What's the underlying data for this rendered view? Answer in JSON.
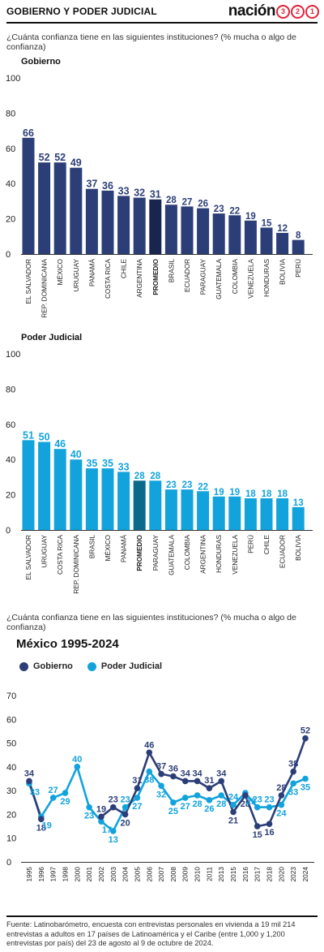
{
  "header": {
    "title": "GOBIERNO Y PODER JUDICIAL",
    "brand_word": "nación",
    "brand_digits": [
      "3",
      "2",
      "1"
    ]
  },
  "colors": {
    "navy": "#2c3e77",
    "navy_highlight": "#17254f",
    "cyan": "#13a3dc",
    "cyan_highlight": "#0b6a8c",
    "brand_red": "#e0243a"
  },
  "question1": "¿Cuánta confianza tiene en las siguientes instituciones? (% mucha o algo de confianza)",
  "question2": "¿Cuánta confianza tiene en las siguientes instituciones? (% mucha o algo de confianza)",
  "timeline_title": "México 1995-2024",
  "legend": {
    "gobierno": "Gobierno",
    "judicial": "Poder Judicial"
  },
  "source": "Fuente: Latinobarómetro, encuesta con entrevistas personales en vivienda a 19 mil 214 entrevistas a adultos en 17 países de Latinoamérica y el Caribe (entre 1,000 y 1,200 entrevistas por país) del 23 de agosto al 9 de octubre de 2024.",
  "chart_data": [
    {
      "type": "bar",
      "title": "Gobierno",
      "categories": [
        "EL SALVADOR",
        "REP. DOMINICANA",
        "MÉXICO",
        "URUGUAY",
        "PANAMÁ",
        "COSTA RICA",
        "CHILE",
        "ARGENTINA",
        "PROMEDIO",
        "BRASIL",
        "ECUADOR",
        "PARAGUAY",
        "GUATEMALA",
        "COLOMBIA",
        "VENEZUELA",
        "HONDURAS",
        "BOLIVIA",
        "PERÚ"
      ],
      "values": [
        66,
        52,
        52,
        49,
        37,
        36,
        33,
        32,
        31,
        28,
        27,
        26,
        23,
        22,
        19,
        15,
        12,
        8
      ],
      "highlight": "PROMEDIO",
      "ylim": [
        0,
        100
      ],
      "yticks": [
        0,
        20,
        40,
        60,
        80,
        100
      ],
      "grid": false
    },
    {
      "type": "bar",
      "title": "Poder Judicial",
      "categories": [
        "EL SALVADOR",
        "URUGUAY",
        "COSTA RICA",
        "REP. DOMINICANA",
        "BRASIL",
        "MÉXICO",
        "PANAMÁ",
        "PROMEDIO",
        "PARAGUAY",
        "GUATEMALA",
        "COLOMBIA",
        "ARGENTINA",
        "HONDURAS",
        "VENEZUELA",
        "PERÚ",
        "CHILE",
        "ECUADOR",
        "BOLIVIA"
      ],
      "values": [
        51,
        50,
        46,
        40,
        35,
        35,
        33,
        28,
        28,
        23,
        23,
        22,
        19,
        19,
        18,
        18,
        18,
        13
      ],
      "highlight": "PROMEDIO",
      "ylim": [
        0,
        100
      ],
      "yticks": [
        0,
        20,
        40,
        60,
        80,
        100
      ],
      "grid": false
    },
    {
      "type": "line",
      "title": "México 1995-2024",
      "x": [
        "1995",
        "1996",
        "1997",
        "1998",
        "2000",
        "2001",
        "2002",
        "2003",
        "2004",
        "2005",
        "2006",
        "2007",
        "2008",
        "2009",
        "2010",
        "2011",
        "2013",
        "2015",
        "2016",
        "2017",
        "2018",
        "2020",
        "2023",
        "2024"
      ],
      "series": [
        {
          "name": "Gobierno",
          "values": [
            34,
            18,
            null,
            null,
            null,
            null,
            19,
            23,
            20,
            31,
            46,
            37,
            36,
            34,
            34,
            31,
            34,
            21,
            28,
            15,
            16,
            28,
            38,
            52
          ]
        },
        {
          "name": "Poder Judicial",
          "values": [
            33,
            19,
            27,
            29,
            40,
            23,
            17,
            13,
            23,
            27,
            38,
            32,
            25,
            27,
            28,
            26,
            28,
            24,
            29,
            23,
            23,
            24,
            33,
            35
          ]
        }
      ],
      "ylim": [
        0,
        70
      ],
      "yticks": [
        0,
        10,
        20,
        30,
        40,
        50,
        60,
        70
      ],
      "legend_position": "top-left",
      "grid": false
    }
  ]
}
